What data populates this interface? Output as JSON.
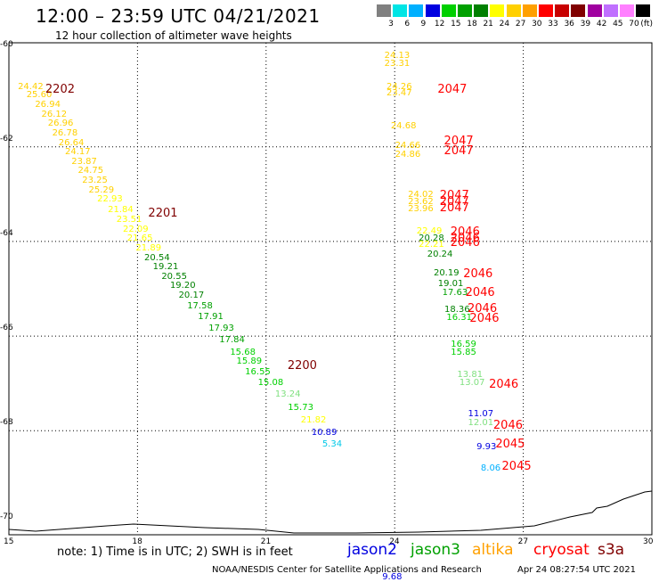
{
  "title": "12:00 – 23:59 UTC 04/21/2021",
  "subtitle": "12 hour collection of altimeter wave heights",
  "colorbar": {
    "colors": [
      "#808080",
      "#00e5e5",
      "#00b0ff",
      "#0000e0",
      "#00d000",
      "#00a000",
      "#008000",
      "#ffff00",
      "#ffd000",
      "#ffa000",
      "#ff0000",
      "#c80000",
      "#800000",
      "#a000a0",
      "#c070ff",
      "#ff80ff",
      "#000000"
    ],
    "labels": [
      "3",
      "6",
      "9",
      "12",
      "15",
      "18",
      "21",
      "24",
      "27",
      "30",
      "33",
      "36",
      "39",
      "42",
      "45",
      "70",
      "(ft)"
    ]
  },
  "axes": {
    "y_ticks": [
      "-60",
      "-62",
      "-64",
      "-66",
      "-68",
      "-70"
    ],
    "y_values": [
      -60,
      -62,
      -64,
      -66,
      -68,
      -70
    ],
    "x_ticks": [
      "15",
      "18",
      "21",
      "24",
      "27",
      "30"
    ],
    "x_values": [
      15,
      18,
      21,
      24,
      27,
      30
    ],
    "xlim": [
      15,
      30
    ],
    "ylim": [
      -70,
      -60
    ]
  },
  "points": [
    {
      "t": "24.42",
      "lon": 15.5,
      "lat": -60.74,
      "c": "#ffd000"
    },
    {
      "t": "25.60",
      "lon": 15.7,
      "lat": -60.92,
      "c": "#ffd000"
    },
    {
      "t": "26.94",
      "lon": 15.9,
      "lat": -61.12,
      "c": "#ffd000"
    },
    {
      "t": "26.12",
      "lon": 16.05,
      "lat": -61.32,
      "c": "#ffd000"
    },
    {
      "t": "26.96",
      "lon": 16.2,
      "lat": -61.52,
      "c": "#ffd000"
    },
    {
      "t": "26.78",
      "lon": 16.3,
      "lat": -61.72,
      "c": "#ffd000"
    },
    {
      "t": "26.64",
      "lon": 16.45,
      "lat": -61.92,
      "c": "#ffd000"
    },
    {
      "t": "24.17",
      "lon": 16.6,
      "lat": -62.12,
      "c": "#ffd000"
    },
    {
      "t": "23.87",
      "lon": 16.75,
      "lat": -62.32,
      "c": "#ffd000"
    },
    {
      "t": "24.75",
      "lon": 16.9,
      "lat": -62.52,
      "c": "#ffd000"
    },
    {
      "t": "23.25",
      "lon": 17.0,
      "lat": -62.72,
      "c": "#ffd000"
    },
    {
      "t": "25.29",
      "lon": 17.15,
      "lat": -62.92,
      "c": "#ffd000"
    },
    {
      "t": "22.93",
      "lon": 17.35,
      "lat": -63.12,
      "c": "#ffff00"
    },
    {
      "t": "21.84",
      "lon": 17.6,
      "lat": -63.35,
      "c": "#ffff00"
    },
    {
      "t": "23.51",
      "lon": 17.8,
      "lat": -63.55,
      "c": "#ffff00"
    },
    {
      "t": "22.09",
      "lon": 17.95,
      "lat": -63.75,
      "c": "#ffff00"
    },
    {
      "t": "21.65",
      "lon": 18.05,
      "lat": -63.95,
      "c": "#ffff00"
    },
    {
      "t": "21.89",
      "lon": 18.25,
      "lat": -64.15,
      "c": "#ffff00"
    },
    {
      "t": "20.54",
      "lon": 18.45,
      "lat": -64.35,
      "c": "#008000"
    },
    {
      "t": "19.21",
      "lon": 18.65,
      "lat": -64.55,
      "c": "#008000"
    },
    {
      "t": "20.55",
      "lon": 18.85,
      "lat": -64.75,
      "c": "#008000"
    },
    {
      "t": "19.20",
      "lon": 19.05,
      "lat": -64.95,
      "c": "#008000"
    },
    {
      "t": "20.17",
      "lon": 19.25,
      "lat": -65.15,
      "c": "#008000"
    },
    {
      "t": "17.58",
      "lon": 19.45,
      "lat": -65.38,
      "c": "#00a000"
    },
    {
      "t": "17.91",
      "lon": 19.7,
      "lat": -65.6,
      "c": "#00a000"
    },
    {
      "t": "17.93",
      "lon": 19.95,
      "lat": -65.85,
      "c": "#00a000"
    },
    {
      "t": "17.84",
      "lon": 20.2,
      "lat": -66.1,
      "c": "#00a000"
    },
    {
      "t": "15.68",
      "lon": 20.45,
      "lat": -66.35,
      "c": "#00d000"
    },
    {
      "t": "15.89",
      "lon": 20.6,
      "lat": -66.55,
      "c": "#00d000"
    },
    {
      "t": "16.55",
      "lon": 20.8,
      "lat": -66.78,
      "c": "#00d000"
    },
    {
      "t": "15.08",
      "lon": 21.1,
      "lat": -67.0,
      "c": "#00d000"
    },
    {
      "t": "13.24",
      "lon": 21.5,
      "lat": -67.25,
      "c": "#80e080"
    },
    {
      "t": "15.73",
      "lon": 21.8,
      "lat": -67.52,
      "c": "#00d000"
    },
    {
      "t": "21.82",
      "lon": 22.1,
      "lat": -67.78,
      "c": "#ffff00"
    },
    {
      "t": "10.89",
      "lon": 22.35,
      "lat": -68.05,
      "c": "#0000e0"
    },
    {
      "t": "5.34",
      "lon": 22.6,
      "lat": -68.3,
      "c": "#00c8e8"
    },
    {
      "t": "24.13",
      "lon": 24.05,
      "lat": -60.08,
      "c": "#ffd000"
    },
    {
      "t": "23.31",
      "lon": 24.05,
      "lat": -60.25,
      "c": "#ffd000"
    },
    {
      "t": "24.26",
      "lon": 24.1,
      "lat": -60.75,
      "c": "#ffd000"
    },
    {
      "t": "23.47",
      "lon": 24.1,
      "lat": -60.88,
      "c": "#ffd000"
    },
    {
      "t": "24.68",
      "lon": 24.2,
      "lat": -61.58,
      "c": "#ffd000"
    },
    {
      "t": "24.66",
      "lon": 24.3,
      "lat": -61.98,
      "c": "#ffd000"
    },
    {
      "t": "24.86",
      "lon": 24.3,
      "lat": -62.18,
      "c": "#ffd000"
    },
    {
      "t": "24.02",
      "lon": 24.6,
      "lat": -63.02,
      "c": "#ffd000"
    },
    {
      "t": "23.62",
      "lon": 24.6,
      "lat": -63.18,
      "c": "#ffd000"
    },
    {
      "t": "23.96",
      "lon": 24.6,
      "lat": -63.33,
      "c": "#ffd000"
    },
    {
      "t": "22.49",
      "lon": 24.8,
      "lat": -63.8,
      "c": "#ffff00"
    },
    {
      "t": "20.28",
      "lon": 24.85,
      "lat": -63.95,
      "c": "#008000"
    },
    {
      "t": "22.21",
      "lon": 24.85,
      "lat": -64.08,
      "c": "#ffff00"
    },
    {
      "t": "20.24",
      "lon": 25.05,
      "lat": -64.28,
      "c": "#008000"
    },
    {
      "t": "20.19",
      "lon": 25.2,
      "lat": -64.68,
      "c": "#008000"
    },
    {
      "t": "19.01",
      "lon": 25.3,
      "lat": -64.9,
      "c": "#008000"
    },
    {
      "t": "17.63",
      "lon": 25.4,
      "lat": -65.1,
      "c": "#00a000"
    },
    {
      "t": "18.36",
      "lon": 25.45,
      "lat": -65.45,
      "c": "#008000"
    },
    {
      "t": "16.31",
      "lon": 25.5,
      "lat": -65.62,
      "c": "#00d000"
    },
    {
      "t": "16.59",
      "lon": 25.6,
      "lat": -66.18,
      "c": "#00d000"
    },
    {
      "t": "15.85",
      "lon": 25.6,
      "lat": -66.35,
      "c": "#00d000"
    },
    {
      "t": "13.81",
      "lon": 25.75,
      "lat": -66.82,
      "c": "#80e080"
    },
    {
      "t": "13.07",
      "lon": 25.8,
      "lat": -67.0,
      "c": "#80e080"
    },
    {
      "t": "11.07",
      "lon": 26.0,
      "lat": -67.65,
      "c": "#0000e0"
    },
    {
      "t": "12.01",
      "lon": 26.0,
      "lat": -67.85,
      "c": "#80e080"
    },
    {
      "t": "9.93",
      "lon": 26.2,
      "lat": -68.35,
      "c": "#0000e0"
    },
    {
      "t": "8.06",
      "lon": 26.3,
      "lat": -68.8,
      "c": "#00b0ff"
    },
    {
      "t": "9.68",
      "lon": 24.0,
      "lat": -71.1,
      "c": "#0000e0"
    }
  ],
  "pass_labels": [
    {
      "t": "2202",
      "lon": 15.85,
      "lat": -60.78,
      "c": "#800000"
    },
    {
      "t": "2201",
      "lon": 18.25,
      "lat": -63.4,
      "c": "#800000"
    },
    {
      "t": "2200",
      "lon": 21.5,
      "lat": -66.62,
      "c": "#800000"
    },
    {
      "t": "2047",
      "lon": 25.0,
      "lat": -60.78,
      "c": "#ff0000"
    },
    {
      "t": "2047",
      "lon": 25.15,
      "lat": -61.88,
      "c": "#ff0000"
    },
    {
      "t": "2047",
      "lon": 25.15,
      "lat": -62.08,
      "c": "#ff0000"
    },
    {
      "t": "2047",
      "lon": 25.05,
      "lat": -63.02,
      "c": "#ff0000"
    },
    {
      "t": "2047",
      "lon": 25.05,
      "lat": -63.15,
      "c": "#ff0000"
    },
    {
      "t": "2047",
      "lon": 25.05,
      "lat": -63.28,
      "c": "#ff0000"
    },
    {
      "t": "2046",
      "lon": 25.3,
      "lat": -63.8,
      "c": "#ff0000"
    },
    {
      "t": "2046",
      "lon": 25.3,
      "lat": -63.92,
      "c": "#ff0000"
    },
    {
      "t": "2046",
      "lon": 25.3,
      "lat": -64.02,
      "c": "#ff0000"
    },
    {
      "t": "2046",
      "lon": 25.6,
      "lat": -64.68,
      "c": "#ff0000"
    },
    {
      "t": "2046",
      "lon": 25.65,
      "lat": -65.08,
      "c": "#ff0000"
    },
    {
      "t": "2046",
      "lon": 25.7,
      "lat": -65.42,
      "c": "#ff0000"
    },
    {
      "t": "2046",
      "lon": 25.75,
      "lat": -65.62,
      "c": "#ff0000"
    },
    {
      "t": "2046",
      "lon": 26.2,
      "lat": -67.02,
      "c": "#ff0000"
    },
    {
      "t": "2046",
      "lon": 26.3,
      "lat": -67.88,
      "c": "#ff0000"
    },
    {
      "t": "2045",
      "lon": 26.35,
      "lat": -68.28,
      "c": "#ff0000"
    },
    {
      "t": "2045",
      "lon": 26.5,
      "lat": -68.75,
      "c": "#ff0000"
    }
  ],
  "note": "note: 1) Time is in UTC; 2) SWH is in feet",
  "satellites": [
    {
      "name": "jason2",
      "color": "#0000e0"
    },
    {
      "name": "jason3",
      "color": "#00a000"
    },
    {
      "name": "altika",
      "color": "#ffa000"
    },
    {
      "name": "cryosat",
      "color": "#ff0000"
    },
    {
      "name": "s3a",
      "color": "#800000"
    }
  ],
  "footer_left": "NOAA/NESDIS Center for Satellite Applications and Research",
  "footer_right": "Apr 24 08:27:54 UTC 2021"
}
